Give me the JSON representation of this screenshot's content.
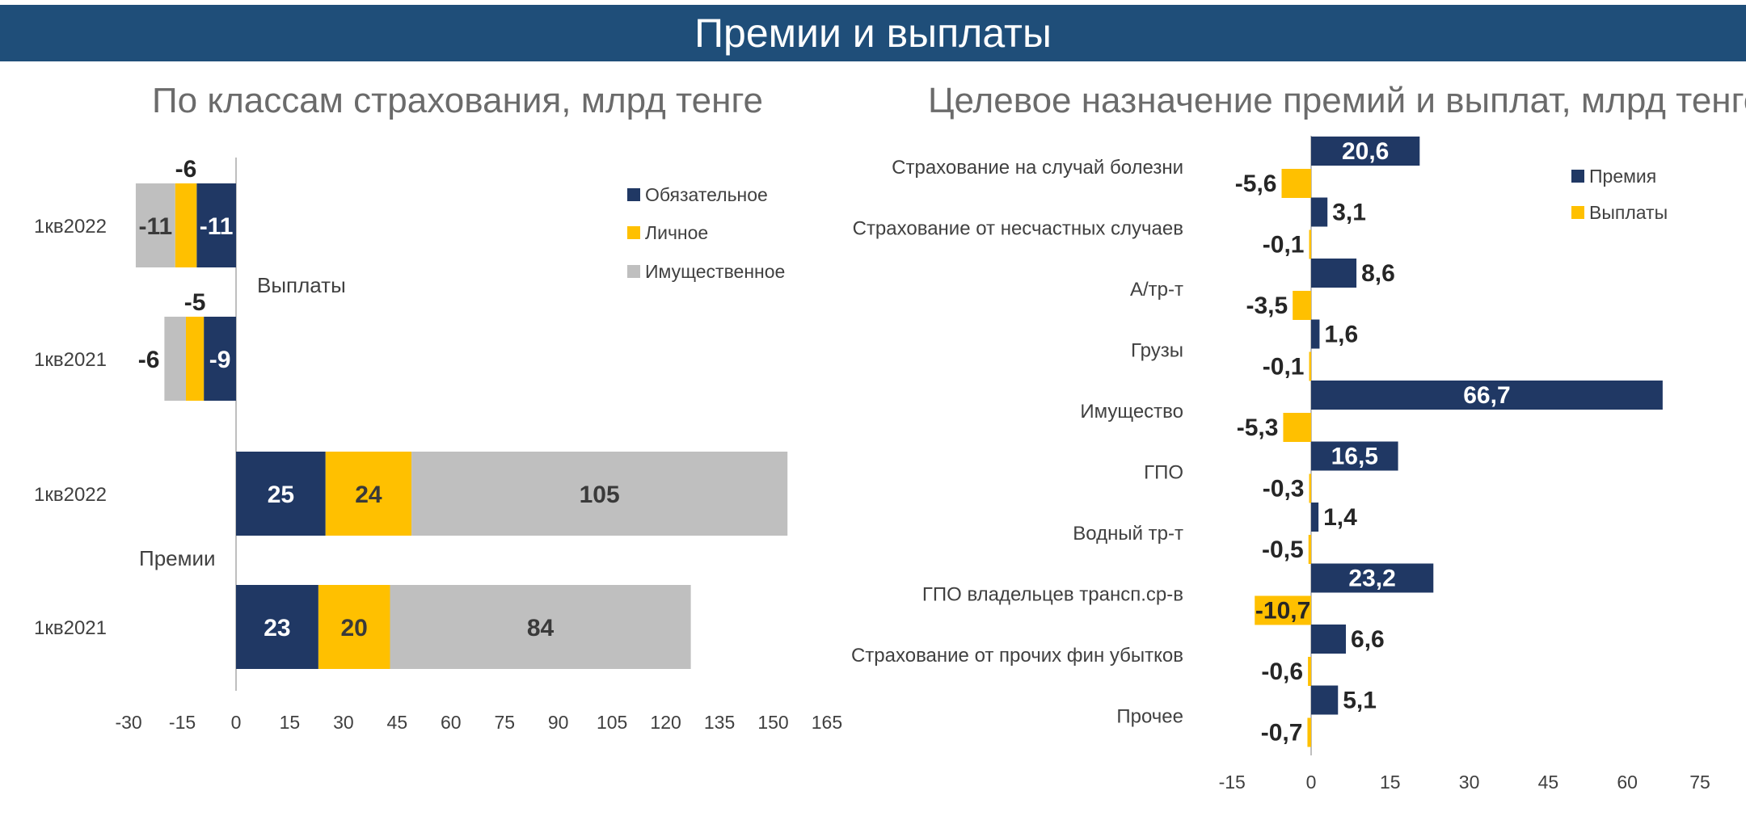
{
  "title": "Премии и выплаты",
  "colors": {
    "banner": "#1f4e79",
    "mandatory": "#203864",
    "personal": "#ffc000",
    "property": "#bfbfbf",
    "premium": "#203864",
    "payout": "#ffc000"
  },
  "chart_data": [
    {
      "type": "bar",
      "orientation": "horizontal",
      "stacked": true,
      "title": "По классам страхования, млрд тенге",
      "groups": [
        {
          "label": "Выплаты",
          "rows": [
            {
              "category": "1кв2022",
              "values": [
                -11,
                -6,
                -11
              ],
              "labels": [
                "-11",
                "-6",
                "-11"
              ]
            },
            {
              "category": "1кв2021",
              "values": [
                -9,
                -5,
                -6
              ],
              "labels": [
                "-9",
                "-5",
                "-6"
              ]
            }
          ]
        },
        {
          "label": "Премии",
          "rows": [
            {
              "category": "1кв2022",
              "values": [
                25,
                24,
                105
              ],
              "labels": [
                "25",
                "24",
                "105"
              ]
            },
            {
              "category": "1кв2021",
              "values": [
                23,
                20,
                84
              ],
              "labels": [
                "23",
                "20",
                "84"
              ]
            }
          ]
        }
      ],
      "series": [
        {
          "name": "Обязательное",
          "color": "#203864"
        },
        {
          "name": "Личное",
          "color": "#ffc000"
        },
        {
          "name": "Имущественное",
          "color": "#bfbfbf"
        }
      ],
      "xlim": [
        -30,
        165
      ],
      "xticks": [
        "-30",
        "-15",
        "0",
        "15",
        "30",
        "45",
        "60",
        "75",
        "90",
        "105",
        "120",
        "135",
        "150",
        "165"
      ],
      "legend": "top-right",
      "grid": false
    },
    {
      "type": "bar",
      "orientation": "horizontal",
      "title": "Целевое назначение премий и выплат, млрд тенге",
      "categories": [
        "Страхование на случай болезни",
        "Страхование от несчастных случаев",
        "А/тр-т",
        "Грузы",
        "Имущество",
        "ГПО",
        "Водный тр-т",
        "ГПО владельцев трансп.ср-в",
        "Страхование от прочих фин убытков",
        "Прочее"
      ],
      "series": [
        {
          "name": "Премия",
          "color": "#203864",
          "values": [
            20.6,
            3.1,
            8.6,
            1.6,
            66.7,
            16.5,
            1.4,
            23.2,
            6.6,
            5.1
          ],
          "labels": [
            "20,6",
            "3,1",
            "8,6",
            "1,6",
            "66,7",
            "16,5",
            "1,4",
            "23,2",
            "6,6",
            "5,1"
          ]
        },
        {
          "name": "Выплаты",
          "color": "#ffc000",
          "values": [
            -5.6,
            -0.1,
            -3.5,
            -0.1,
            -5.3,
            -0.3,
            -0.5,
            -10.7,
            -0.6,
            -0.7
          ],
          "labels": [
            "-5,6",
            "-0,1",
            "-3,5",
            "-0,1",
            "-5,3",
            "-0,3",
            "-0,5",
            "-10,7",
            "-0,6",
            "-0,7"
          ]
        }
      ],
      "xlim": [
        -15,
        75
      ],
      "xticks": [
        "-15",
        "0",
        "15",
        "30",
        "45",
        "60",
        "75"
      ],
      "legend": "top-right",
      "grid": false
    }
  ]
}
